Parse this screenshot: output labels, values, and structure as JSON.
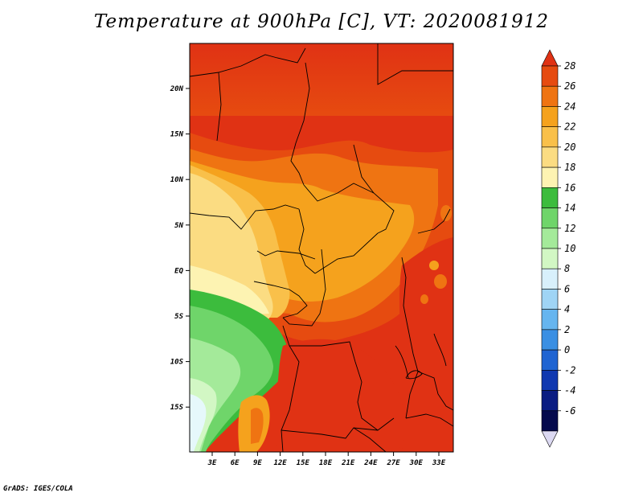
{
  "title": "Temperature at 900hPa [C], VT: 2020081912",
  "credit": "GrADS: IGES/COLA",
  "map": {
    "lat_labels": [
      "20N",
      "15N",
      "10N",
      "5N",
      "EQ",
      "5S",
      "10S",
      "15S"
    ],
    "lon_labels": [
      "3E",
      "6E",
      "9E",
      "12E",
      "15E",
      "18E",
      "21E",
      "24E",
      "27E",
      "30E",
      "33E"
    ],
    "lon_range": [
      0,
      35
    ],
    "lat_range": [
      -20,
      24
    ]
  },
  "colorbar": {
    "labels": [
      "28",
      "26",
      "24",
      "22",
      "20",
      "18",
      "16",
      "14",
      "12",
      "10",
      "8",
      "6",
      "4",
      "2",
      "0",
      "-2",
      "-4",
      "-6"
    ],
    "colors": [
      "#e03214",
      "#e64b10",
      "#ef7412",
      "#f5a21d",
      "#f9c04a",
      "#fbdc82",
      "#fdf3b2",
      "#3cbc3d",
      "#6fd56a",
      "#a4ea9a",
      "#d2f7c4",
      "#d8f0fc",
      "#9fd4f5",
      "#66b5ef",
      "#3a8fe3",
      "#1f64d2",
      "#1038b0",
      "#0a1c82",
      "#050a4d",
      "#dcd9f2"
    ]
  }
}
